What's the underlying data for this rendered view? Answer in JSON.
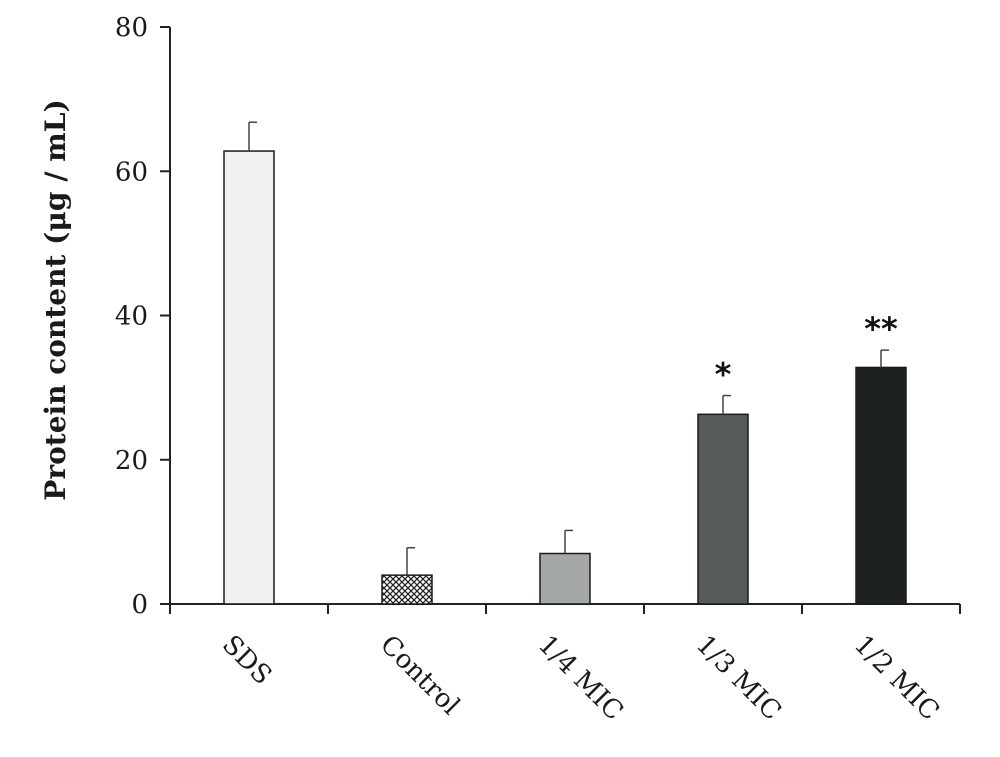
{
  "chart_data": {
    "type": "bar",
    "title": "",
    "xlabel": "",
    "ylabel": "Protein content (μg / mL)",
    "ylim": [
      0,
      80
    ],
    "yticks": [
      0,
      20,
      40,
      60,
      80
    ],
    "grid": false,
    "categories": [
      "SDS",
      "Control",
      "1/4 MIC",
      "1/3 MIC",
      "1/2 MIC"
    ],
    "values": [
      62.8,
      4.0,
      7.0,
      26.3,
      32.8
    ],
    "errors": [
      4.0,
      3.8,
      3.2,
      2.6,
      2.4
    ],
    "annotations": [
      "",
      "",
      "",
      "*",
      "**"
    ],
    "colors": [
      "#f0f0f0",
      "hatched",
      "#a4a9a8",
      "#555a5b",
      "#1e2121"
    ]
  }
}
